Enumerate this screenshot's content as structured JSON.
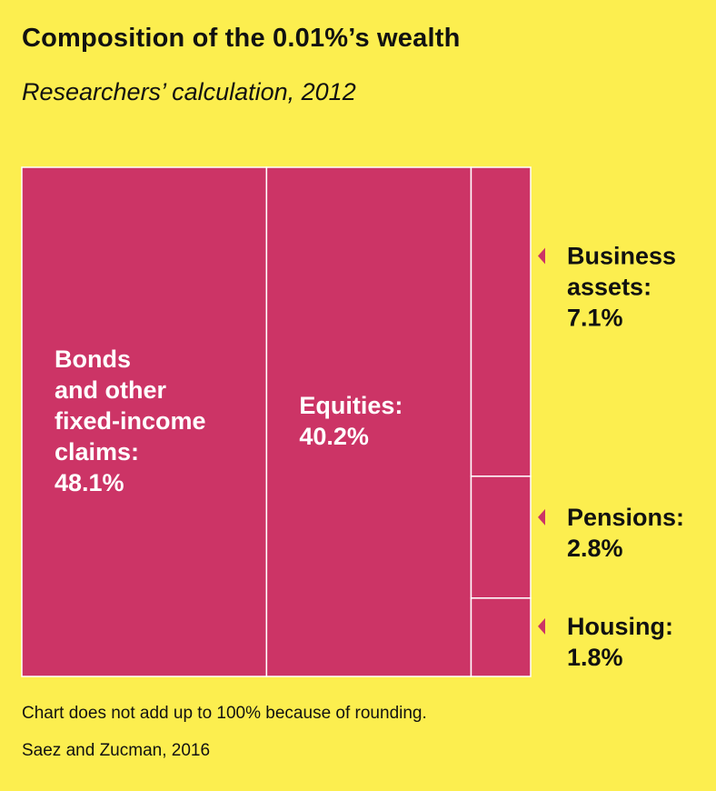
{
  "chart_data": {
    "type": "treemap",
    "title": "Composition of the 0.01%’s wealth",
    "subtitle": "Researchers’ calculation, 2012",
    "unit": "%",
    "categories": [
      "Bonds and other fixed-income claims",
      "Equities",
      "Business assets",
      "Pensions",
      "Housing"
    ],
    "values": [
      48.1,
      40.2,
      7.1,
      2.8,
      1.8
    ],
    "labels": [
      {
        "lines": [
          "Bonds",
          "and other",
          "fixed-income",
          "claims:",
          "48.1%"
        ],
        "placement": "inside"
      },
      {
        "lines": [
          "Equities:",
          "40.2%"
        ],
        "placement": "inside"
      },
      {
        "lines": [
          "Business",
          "assets:",
          "7.1%"
        ],
        "placement": "right-callout"
      },
      {
        "lines": [
          "Pensions:",
          "2.8%"
        ],
        "placement": "right-callout"
      },
      {
        "lines": [
          "Housing:",
          "1.8%"
        ],
        "placement": "right-callout"
      }
    ],
    "note": "Chart does not add up to 100% because of rounding.",
    "source": "Saez and Zucman, 2016"
  },
  "colors": {
    "background": "#fcee4f",
    "tile": "#cc3466",
    "tile_border": "#ffffff",
    "label_inside": "#ffffff",
    "label_outside": "#111111",
    "pointer": "#cc3466"
  }
}
